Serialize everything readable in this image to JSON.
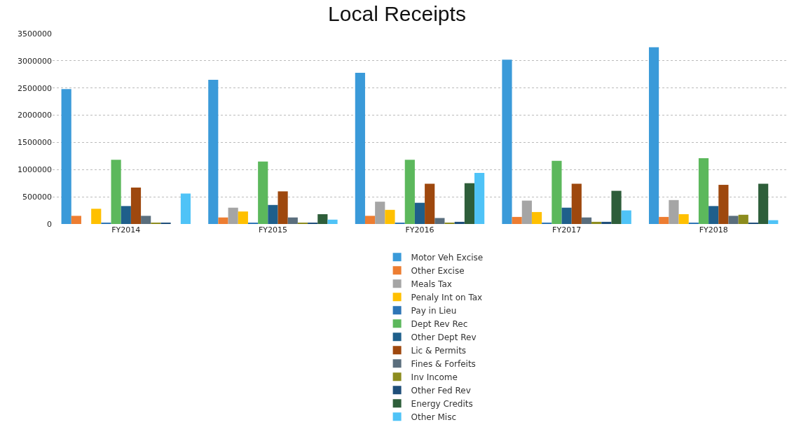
{
  "chart_data": {
    "type": "bar",
    "title": "Local Receipts",
    "categories": [
      "FY2014",
      "FY2015",
      "FY2016",
      "FY2017",
      "FY2018"
    ],
    "series": [
      {
        "name": "Motor Veh Excise",
        "color": "#3a9ad9",
        "values": [
          2480000,
          2650000,
          2780000,
          3020000,
          3250000
        ]
      },
      {
        "name": "Other Excise",
        "color": "#ed7d31",
        "values": [
          150000,
          120000,
          150000,
          130000,
          130000
        ]
      },
      {
        "name": "Meals Tax",
        "color": "#a5a5a5",
        "values": [
          0,
          300000,
          410000,
          430000,
          440000
        ]
      },
      {
        "name": "Penaly Int on Tax",
        "color": "#ffc000",
        "values": [
          280000,
          230000,
          260000,
          220000,
          180000
        ]
      },
      {
        "name": "Pay in Lieu",
        "color": "#2e75b6",
        "values": [
          20000,
          20000,
          20000,
          20000,
          20000
        ]
      },
      {
        "name": "Dept Rev Rec",
        "color": "#5cb85c",
        "values": [
          1180000,
          1150000,
          1180000,
          1160000,
          1210000
        ]
      },
      {
        "name": "Other Dept Rev",
        "color": "#1f5f8b",
        "values": [
          330000,
          350000,
          390000,
          300000,
          330000
        ]
      },
      {
        "name": "Lic & Permits",
        "color": "#9e480e",
        "values": [
          670000,
          600000,
          740000,
          740000,
          720000
        ]
      },
      {
        "name": "Fines & Forfeits",
        "color": "#5a6e7d",
        "values": [
          150000,
          120000,
          110000,
          120000,
          150000
        ]
      },
      {
        "name": "Inv Income",
        "color": "#8c8c1e",
        "values": [
          20000,
          20000,
          20000,
          40000,
          170000
        ]
      },
      {
        "name": "Other Fed Rev",
        "color": "#1f4e79",
        "values": [
          20000,
          20000,
          40000,
          40000,
          20000
        ]
      },
      {
        "name": "Energy Credits",
        "color": "#2e5e3a",
        "values": [
          0,
          180000,
          750000,
          610000,
          740000
        ]
      },
      {
        "name": "Other Misc",
        "color": "#4fc3f7",
        "values": [
          560000,
          80000,
          940000,
          250000,
          70000
        ]
      }
    ],
    "ylim": [
      0,
      3500000
    ],
    "yticks": [
      0,
      500000,
      1000000,
      1500000,
      2000000,
      2500000,
      3000000,
      3500000
    ],
    "grid": "y",
    "legend": "bottom"
  }
}
